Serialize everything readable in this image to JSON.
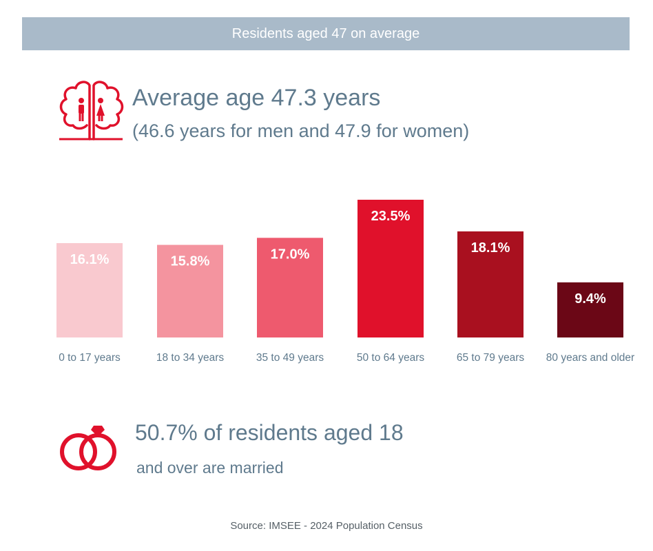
{
  "banner": {
    "title": "Residents aged 47 on average"
  },
  "age": {
    "headline": "Average age 47.3 years",
    "detail": "(46.6 years for men and 47.9 for women)",
    "icon": "family-tree-icon"
  },
  "chart_data": {
    "type": "bar",
    "categories": [
      "0 to 17 years",
      "18 to 34 years",
      "35 to 49 years",
      "50 to 64 years",
      "65 to 79 years",
      "80 years and older"
    ],
    "values": [
      16.1,
      15.8,
      17.0,
      23.5,
      18.1,
      9.4
    ],
    "data_labels": [
      "16.1%",
      "15.8%",
      "17.0%",
      "23.5%",
      "18.1%",
      "9.4%"
    ],
    "colors": [
      "#f9c9cf",
      "#f4949f",
      "#ee5a6e",
      "#e0112b",
      "#a9101f",
      "#6b0716"
    ],
    "title": "",
    "xlabel": "",
    "ylabel": "",
    "ylim": [
      0,
      23.5
    ],
    "grid": false
  },
  "married": {
    "main": "50.7% of residents aged 18",
    "sub": "and over are married",
    "icon": "wedding-rings-icon"
  },
  "footer": {
    "source": "Source: IMSEE - 2024 Population Census"
  },
  "colors": {
    "accent": "#e0112b",
    "banner": "#a9bac9",
    "text": "#5f7a8d"
  }
}
